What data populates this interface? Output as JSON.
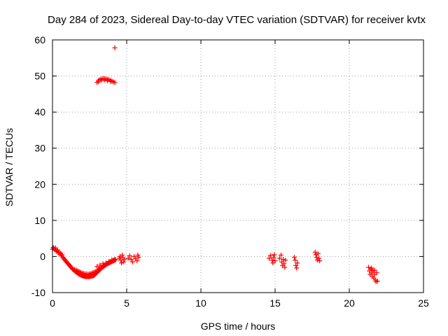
{
  "chart_data": {
    "type": "scatter",
    "title": "Day 284 of 2023, Sidereal Day-to-day VTEC variation (SDTVAR) for receiver kvtx",
    "xlabel": "GPS time / hours",
    "ylabel": "SDTVAR / TECUs",
    "xlim": [
      0,
      25
    ],
    "ylim": [
      -10,
      60
    ],
    "x_ticks": [
      "0",
      "5",
      "10",
      "15",
      "20",
      "25"
    ],
    "y_ticks": [
      "-10",
      "0",
      "10",
      "20",
      "30",
      "40",
      "50",
      "60"
    ],
    "x_tick_values": [
      0,
      5,
      10,
      15,
      20,
      25
    ],
    "y_tick_values": [
      -10,
      0,
      10,
      20,
      30,
      40,
      50,
      60
    ],
    "grid": true,
    "marker": "+",
    "colors": {
      "points": "#ff0000",
      "axes": "#000000",
      "grid": "#a0a0a0",
      "background": "#ffffff"
    },
    "series": [
      {
        "name": "SDTVAR",
        "points": [
          [
            0.0,
            2.0
          ],
          [
            0.05,
            2.5
          ],
          [
            0.1,
            2.2
          ],
          [
            0.15,
            1.8
          ],
          [
            0.2,
            2.4
          ],
          [
            0.25,
            1.6
          ],
          [
            0.3,
            1.4
          ],
          [
            0.35,
            1.8
          ],
          [
            0.4,
            1.0
          ],
          [
            0.45,
            1.2
          ],
          [
            0.5,
            0.6
          ],
          [
            0.55,
            0.9
          ],
          [
            0.6,
            0.2
          ],
          [
            0.65,
            0.5
          ],
          [
            0.7,
            -0.2
          ],
          [
            0.75,
            -0.5
          ],
          [
            0.8,
            -0.8
          ],
          [
            0.85,
            -1.0
          ],
          [
            0.9,
            -1.3
          ],
          [
            0.95,
            -1.5
          ],
          [
            1.0,
            -1.8
          ],
          [
            1.05,
            -2.0
          ],
          [
            1.1,
            -2.2
          ],
          [
            1.15,
            -2.5
          ],
          [
            1.2,
            -2.7
          ],
          [
            1.25,
            -3.0
          ],
          [
            1.3,
            -3.2
          ],
          [
            1.35,
            -3.5
          ],
          [
            1.4,
            -3.6
          ],
          [
            1.45,
            -3.8
          ],
          [
            1.5,
            -4.0
          ],
          [
            1.55,
            -4.2
          ],
          [
            1.6,
            -4.3
          ],
          [
            1.65,
            -4.5
          ],
          [
            1.7,
            -4.6
          ],
          [
            1.75,
            -4.8
          ],
          [
            1.8,
            -4.9
          ],
          [
            1.85,
            -5.0
          ],
          [
            1.9,
            -5.1
          ],
          [
            1.95,
            -5.2
          ],
          [
            2.0,
            -5.3
          ],
          [
            2.05,
            -5.4
          ],
          [
            2.1,
            -5.4
          ],
          [
            2.15,
            -5.5
          ],
          [
            2.2,
            -5.5
          ],
          [
            2.25,
            -5.6
          ],
          [
            2.3,
            -5.6
          ],
          [
            2.35,
            -5.5
          ],
          [
            2.4,
            -5.6
          ],
          [
            2.45,
            -5.5
          ],
          [
            2.5,
            -5.6
          ],
          [
            2.55,
            -5.5
          ],
          [
            2.6,
            -5.4
          ],
          [
            2.65,
            -5.5
          ],
          [
            2.7,
            -5.3
          ],
          [
            2.75,
            -5.4
          ],
          [
            2.8,
            -5.2
          ],
          [
            2.85,
            -5.0
          ],
          [
            2.9,
            -4.8
          ],
          [
            2.95,
            -4.6
          ],
          [
            3.0,
            -4.4
          ],
          [
            3.05,
            -4.2
          ],
          [
            3.1,
            -4.0
          ],
          [
            3.15,
            -3.8
          ],
          [
            3.2,
            -3.6
          ],
          [
            3.25,
            -3.4
          ],
          [
            3.3,
            -3.2
          ],
          [
            3.35,
            -3.0
          ],
          [
            3.4,
            -2.9
          ],
          [
            3.45,
            -2.7
          ],
          [
            3.5,
            -2.6
          ],
          [
            3.55,
            -2.4
          ],
          [
            3.6,
            -2.3
          ],
          [
            3.65,
            -2.1
          ],
          [
            3.7,
            -2.0
          ],
          [
            3.75,
            -1.9
          ],
          [
            3.8,
            -1.8
          ],
          [
            3.85,
            -1.7
          ],
          [
            3.9,
            -1.6
          ],
          [
            3.95,
            -1.5
          ],
          [
            4.0,
            -1.4
          ],
          [
            4.05,
            -1.3
          ],
          [
            4.1,
            -1.2
          ],
          [
            4.15,
            -1.1
          ],
          [
            4.2,
            -1.0
          ],
          [
            4.25,
            -0.9
          ],
          [
            1.5,
            -3.6
          ],
          [
            1.6,
            -3.8
          ],
          [
            1.7,
            -4.0
          ],
          [
            1.8,
            -4.2
          ],
          [
            1.9,
            -4.4
          ],
          [
            2.0,
            -4.6
          ],
          [
            2.1,
            -4.7
          ],
          [
            2.2,
            -4.8
          ],
          [
            2.3,
            -4.8
          ],
          [
            2.4,
            -4.9
          ],
          [
            2.5,
            -4.8
          ],
          [
            2.6,
            -4.7
          ],
          [
            2.7,
            -4.5
          ],
          [
            2.8,
            -4.4
          ],
          [
            2.9,
            -4.2
          ],
          [
            3.0,
            -3.9
          ],
          [
            3.1,
            -3.6
          ],
          [
            3.2,
            -3.3
          ],
          [
            3.3,
            -3.0
          ],
          [
            3.4,
            -2.8
          ],
          [
            3.5,
            -2.5
          ],
          [
            3.6,
            -2.2
          ],
          [
            3.7,
            -1.9
          ],
          [
            3.8,
            -1.6
          ],
          [
            3.9,
            -1.4
          ],
          [
            4.0,
            -1.2
          ],
          [
            4.1,
            -1.0
          ],
          [
            4.2,
            -0.8
          ],
          [
            3.0,
            -2.8
          ],
          [
            3.2,
            -2.4
          ],
          [
            3.4,
            -2.0
          ],
          [
            3.6,
            -1.8
          ],
          [
            3.8,
            -1.4
          ],
          [
            4.0,
            -1.0
          ],
          [
            3.0,
            48.2
          ],
          [
            3.1,
            48.8
          ],
          [
            3.2,
            49.0
          ],
          [
            3.3,
            49.2
          ],
          [
            3.4,
            49.3
          ],
          [
            3.5,
            49.3
          ],
          [
            3.6,
            49.2
          ],
          [
            3.7,
            49.1
          ],
          [
            3.8,
            49.0
          ],
          [
            3.9,
            48.8
          ],
          [
            4.0,
            48.6
          ],
          [
            4.1,
            48.4
          ],
          [
            4.2,
            48.2
          ],
          [
            3.1,
            48.4
          ],
          [
            3.3,
            48.8
          ],
          [
            3.5,
            48.9
          ],
          [
            3.7,
            48.7
          ],
          [
            3.9,
            48.5
          ],
          [
            4.2,
            57.8
          ],
          [
            4.5,
            -0.5
          ],
          [
            4.55,
            0.0
          ],
          [
            4.6,
            -1.0
          ],
          [
            4.65,
            -1.8
          ],
          [
            4.7,
            0.4
          ],
          [
            4.75,
            -0.3
          ],
          [
            4.8,
            -1.5
          ],
          [
            4.85,
            -0.8
          ],
          [
            5.1,
            -0.5
          ],
          [
            5.2,
            0.2
          ],
          [
            5.3,
            -0.8
          ],
          [
            5.4,
            -1.5
          ],
          [
            5.5,
            0.0
          ],
          [
            5.6,
            -0.6
          ],
          [
            5.7,
            -1.2
          ],
          [
            5.75,
            0.4
          ],
          [
            5.8,
            -0.2
          ],
          [
            14.6,
            -0.5
          ],
          [
            14.7,
            0.3
          ],
          [
            14.8,
            -1.0
          ],
          [
            14.85,
            -1.8
          ],
          [
            14.9,
            -0.3
          ],
          [
            14.95,
            0.5
          ],
          [
            15.0,
            -1.2
          ],
          [
            15.3,
            -0.5
          ],
          [
            15.4,
            0.4
          ],
          [
            15.45,
            -1.5
          ],
          [
            15.5,
            -2.5
          ],
          [
            15.55,
            -0.8
          ],
          [
            15.6,
            -2.0
          ],
          [
            15.65,
            -3.0
          ],
          [
            15.7,
            -1.0
          ],
          [
            16.3,
            -0.2
          ],
          [
            16.35,
            -1.0
          ],
          [
            16.4,
            -2.5
          ],
          [
            16.45,
            -3.2
          ],
          [
            16.5,
            -1.8
          ],
          [
            17.7,
            1.2
          ],
          [
            17.75,
            0.5
          ],
          [
            17.8,
            -0.3
          ],
          [
            17.85,
            -1.0
          ],
          [
            17.9,
            0.8
          ],
          [
            17.95,
            -0.5
          ],
          [
            18.0,
            -1.2
          ],
          [
            21.3,
            -3.0
          ],
          [
            21.35,
            -4.0
          ],
          [
            21.4,
            -5.0
          ],
          [
            21.45,
            -3.5
          ],
          [
            21.5,
            -4.5
          ],
          [
            21.55,
            -5.5
          ],
          [
            21.6,
            -4.0
          ],
          [
            21.65,
            -6.0
          ],
          [
            21.7,
            -5.0
          ],
          [
            21.75,
            -6.5
          ],
          [
            21.8,
            -7.0
          ],
          [
            21.85,
            -4.5
          ],
          [
            21.9,
            -6.8
          ],
          [
            21.5,
            -3.2
          ],
          [
            21.7,
            -3.8
          ]
        ]
      }
    ]
  }
}
